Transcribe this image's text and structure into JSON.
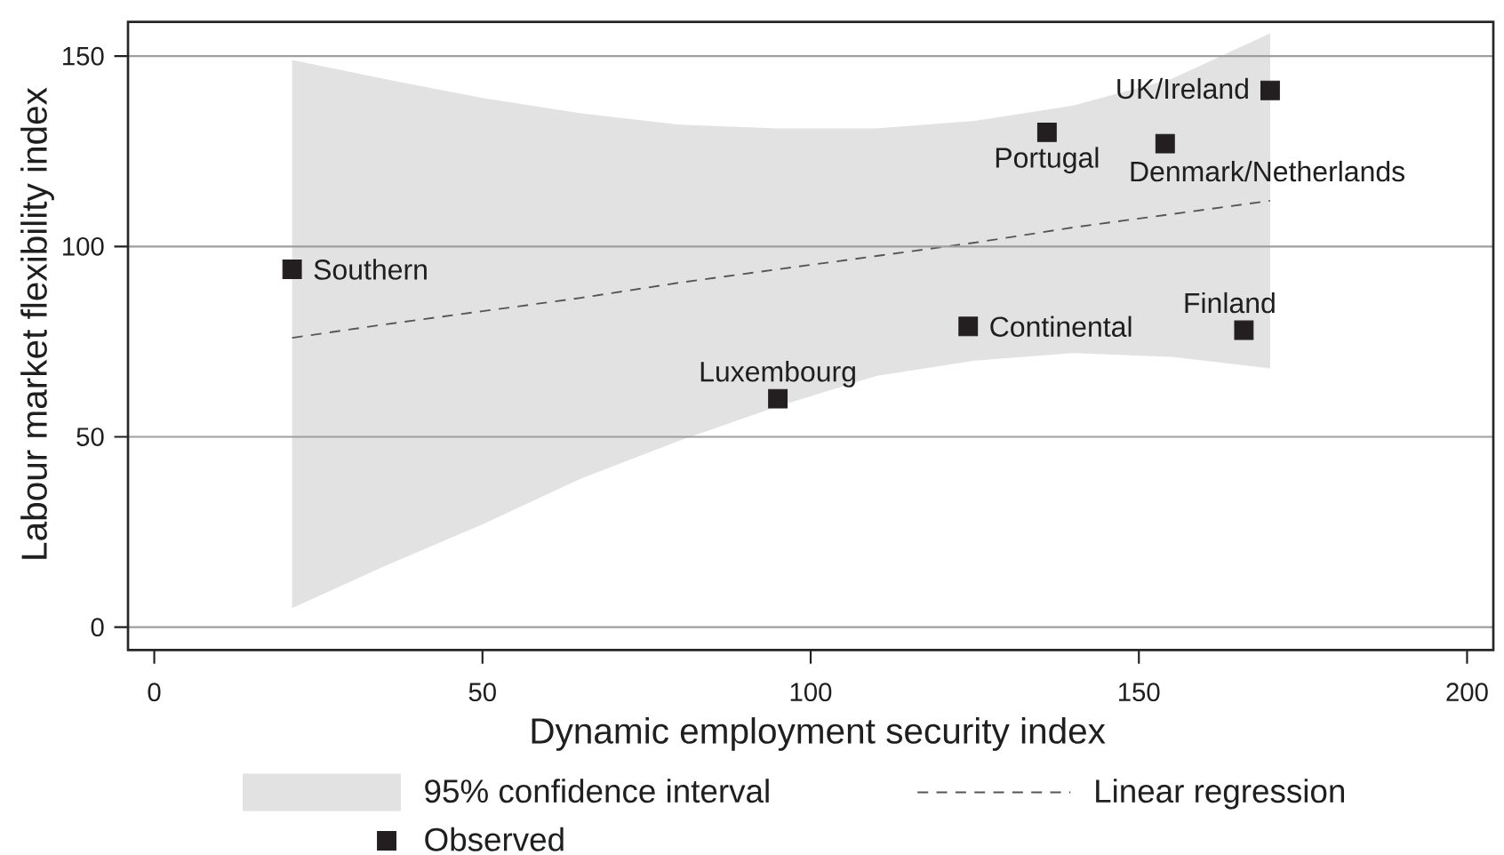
{
  "chart_data": {
    "type": "scatter",
    "xlabel": "Dynamic employment security index",
    "ylabel": "Labour market flexibility index",
    "xlim": [
      -4,
      204
    ],
    "ylim": [
      -6,
      159
    ],
    "xticks": [
      0,
      50,
      100,
      150,
      200
    ],
    "yticks": [
      0,
      50,
      100,
      150
    ],
    "grid": "y",
    "legend": "bottom",
    "series": [
      {
        "name": "Linear regression",
        "type": "line",
        "color": "#555555",
        "line_style": "dashed",
        "marker": "none",
        "x": [
          21,
          35,
          50,
          65,
          80,
          95,
          110,
          125,
          140,
          155,
          170
        ],
        "values": [
          76,
          79.5,
          83,
          86.5,
          90.5,
          94,
          97.5,
          101,
          105,
          108.5,
          112
        ],
        "lower": [
          5,
          16,
          27,
          39,
          49,
          58,
          66,
          70,
          72,
          71,
          68
        ],
        "upper": [
          149,
          144,
          139,
          135,
          132,
          131,
          131,
          133,
          137,
          144,
          156
        ]
      },
      {
        "name": "Observed",
        "color": "#231f20",
        "marker": "square",
        "x": [
          21,
          95,
          124,
          136,
          154,
          170,
          166
        ],
        "values": [
          94,
          60,
          79,
          130,
          127,
          141,
          78
        ]
      }
    ],
    "annotations": [
      {
        "text": "Southern",
        "x": 21,
        "y": 94
      },
      {
        "text": "Luxembourg",
        "x": 95,
        "y": 60
      },
      {
        "text": "Continental",
        "x": 124,
        "y": 79
      },
      {
        "text": "Portugal",
        "x": 136,
        "y": 130
      },
      {
        "text": "Denmark/Netherlands",
        "x": 154,
        "y": 127
      },
      {
        "text": "UK/Ireland",
        "x": 170,
        "y": 141
      },
      {
        "text": "Finland",
        "x": 166,
        "y": 78
      },
      "95% confidence interval"
    ]
  }
}
